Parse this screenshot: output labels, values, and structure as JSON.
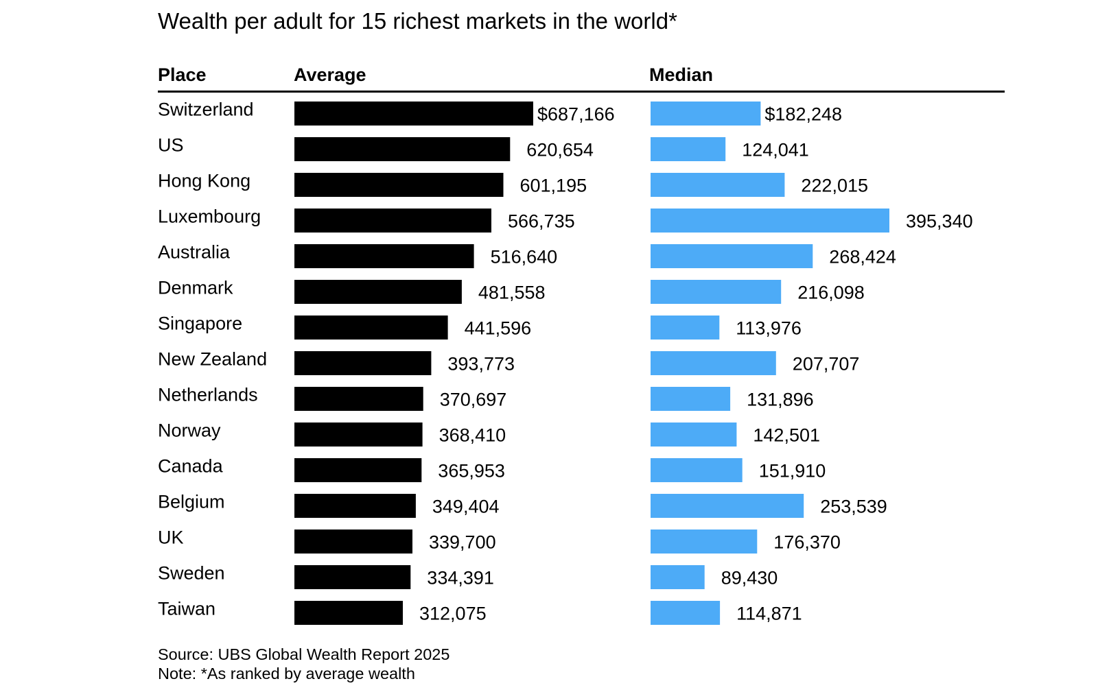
{
  "chart_data": {
    "type": "bar",
    "title": "Wealth per adult for 15 richest markets in the world*",
    "column_headers": {
      "place": "Place",
      "average": "Average",
      "median": "Median"
    },
    "categories": [
      "Switzerland",
      "US",
      "Hong Kong",
      "Luxembourg",
      "Australia",
      "Denmark",
      "Singapore",
      "New Zealand",
      "Netherlands",
      "Norway",
      "Canada",
      "Belgium",
      "UK",
      "Sweden",
      "Taiwan"
    ],
    "series": [
      {
        "name": "Average",
        "color": "#000000",
        "values": [
          687166,
          620654,
          601195,
          566735,
          516640,
          481558,
          441596,
          393773,
          370697,
          368410,
          365953,
          349404,
          339700,
          334391,
          312075
        ],
        "labels": [
          "$687,166",
          "620,654",
          "601,195",
          "566,735",
          "516,640",
          "481,558",
          "441,596",
          "393,773",
          "370,697",
          "368,410",
          "365,953",
          "349,404",
          "339,700",
          "334,391",
          "312,075"
        ]
      },
      {
        "name": "Median",
        "color": "#4dabf7",
        "values": [
          182248,
          124041,
          222015,
          395340,
          268424,
          216098,
          113976,
          207707,
          131896,
          142501,
          151910,
          253539,
          176370,
          89430,
          114871
        ],
        "labels": [
          "$182,248",
          "124,041",
          "222,015",
          "395,340",
          "268,424",
          "216,098",
          "113,976",
          "207,707",
          "131,896",
          "142,501",
          "151,910",
          "253,539",
          "176,370",
          "89,430",
          "114,871"
        ]
      }
    ],
    "source": "Source: UBS Global Wealth Report 2025",
    "note": "Note: *As ranked by average wealth",
    "grid": false,
    "legend": "none"
  }
}
